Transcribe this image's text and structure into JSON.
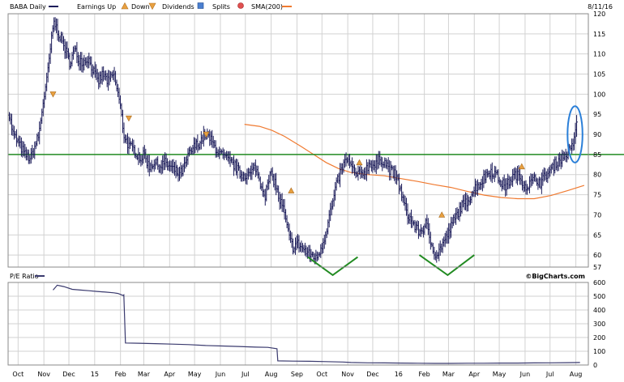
{
  "header": {
    "ticker_label": "BABA Daily",
    "legend": [
      {
        "label": "Earnings Up",
        "icon": "triangle-up-icon",
        "color": "#e8a040"
      },
      {
        "label": "Down",
        "icon": "triangle-down-icon",
        "color": "#e8a040"
      },
      {
        "label": "Dividends",
        "icon": "dividend-square-icon",
        "color": "#4a7fd0"
      },
      {
        "label": "Splits",
        "icon": "split-circle-icon",
        "color": "#e05050"
      },
      {
        "label": "SMA(200)",
        "icon": "sma-line-icon",
        "color": "#f07a30"
      }
    ],
    "date": "8/11/16"
  },
  "lower_panel_label": "P/E Ratio",
  "watermark": "©BigCharts.com",
  "colors": {
    "price": "#1c1c5a",
    "sma": "#f07a30",
    "resistance": "#228b22",
    "annotation_v": "#228b22",
    "annotation_ellipse": "#2a7fd8",
    "pe": "#3a3a6e",
    "marker": "#e8a040"
  },
  "chart_data": [
    {
      "type": "line",
      "panel": "price",
      "x_ticks": [
        {
          "label": "Oct",
          "day": 0
        },
        {
          "label": "Nov",
          "day": 31
        },
        {
          "label": "Dec",
          "day": 61
        },
        {
          "label": "15",
          "day": 92
        },
        {
          "label": "Feb",
          "day": 123
        },
        {
          "label": "Mar",
          "day": 151
        },
        {
          "label": "Apr",
          "day": 182
        },
        {
          "label": "May",
          "day": 212
        },
        {
          "label": "Jun",
          "day": 243
        },
        {
          "label": "Jul",
          "day": 273
        },
        {
          "label": "Aug",
          "day": 304
        },
        {
          "label": "Sep",
          "day": 335
        },
        {
          "label": "Oct",
          "day": 365
        },
        {
          "label": "Nov",
          "day": 396
        },
        {
          "label": "Dec",
          "day": 426
        },
        {
          "label": "16",
          "day": 457
        },
        {
          "label": "Feb",
          "day": 488
        },
        {
          "label": "Mar",
          "day": 517
        },
        {
          "label": "Apr",
          "day": 548
        },
        {
          "label": "May",
          "day": 578
        },
        {
          "label": "Jun",
          "day": 609
        },
        {
          "label": "Jul",
          "day": 639
        },
        {
          "label": "Aug",
          "day": 670
        }
      ],
      "x_range": [
        -12,
        685
      ],
      "y_ticks": [
        57,
        60,
        65,
        70,
        75,
        80,
        85,
        90,
        95,
        100,
        105,
        110,
        115,
        120
      ],
      "y_range": [
        57,
        120
      ],
      "grid": true,
      "series": [
        {
          "name": "BABA Daily",
          "style": "price-bars",
          "points": [
            [
              -12,
              96
            ],
            [
              -6,
              90
            ],
            [
              0,
              88
            ],
            [
              8,
              85
            ],
            [
              15,
              84
            ],
            [
              25,
              90
            ],
            [
              30,
              98
            ],
            [
              35,
              104
            ],
            [
              38,
              110
            ],
            [
              43,
              118
            ],
            [
              47,
              116
            ],
            [
              55,
              112
            ],
            [
              62,
              108
            ],
            [
              68,
              111
            ],
            [
              72,
              109
            ],
            [
              78,
              108
            ],
            [
              84,
              109
            ],
            [
              90,
              106
            ],
            [
              96,
              103
            ],
            [
              102,
              105
            ],
            [
              108,
              103
            ],
            [
              115,
              105
            ],
            [
              122,
              98
            ],
            [
              127,
              90
            ],
            [
              133,
              87
            ],
            [
              140,
              86
            ],
            [
              147,
              84
            ],
            [
              152,
              85
            ],
            [
              157,
              82
            ],
            [
              163,
              83
            ],
            [
              170,
              82
            ],
            [
              176,
              83
            ],
            [
              182,
              82
            ],
            [
              188,
              81
            ],
            [
              194,
              80
            ],
            [
              200,
              82
            ],
            [
              205,
              85
            ],
            [
              212,
              87
            ],
            [
              218,
              88
            ],
            [
              224,
              90
            ],
            [
              230,
              89
            ],
            [
              236,
              87
            ],
            [
              243,
              85
            ],
            [
              249,
              84
            ],
            [
              255,
              83
            ],
            [
              261,
              82
            ],
            [
              267,
              80
            ],
            [
              273,
              80
            ],
            [
              279,
              80
            ],
            [
              285,
              82
            ],
            [
              291,
              78
            ],
            [
              297,
              75
            ],
            [
              303,
              80
            ],
            [
              309,
              78
            ],
            [
              313,
              74
            ],
            [
              318,
              72
            ],
            [
              322,
              68
            ],
            [
              326,
              64
            ],
            [
              330,
              62
            ],
            [
              335,
              63
            ],
            [
              340,
              62
            ],
            [
              345,
              61
            ],
            [
              350,
              60
            ],
            [
              354,
              60
            ],
            [
              358,
              59
            ],
            [
              362,
              61
            ],
            [
              366,
              63
            ],
            [
              370,
              66
            ],
            [
              374,
              70
            ],
            [
              378,
              73
            ],
            [
              382,
              77
            ],
            [
              386,
              80
            ],
            [
              390,
              82
            ],
            [
              395,
              84
            ],
            [
              400,
              82
            ],
            [
              405,
              80
            ],
            [
              411,
              80
            ],
            [
              417,
              81
            ],
            [
              423,
              83
            ],
            [
              429,
              82
            ],
            [
              435,
              84
            ],
            [
              441,
              83
            ],
            [
              447,
              81
            ],
            [
              452,
              80
            ],
            [
              457,
              78
            ],
            [
              463,
              73
            ],
            [
              468,
              70
            ],
            [
              474,
              68
            ],
            [
              480,
              66
            ],
            [
              485,
              66
            ],
            [
              490,
              68
            ],
            [
              494,
              64
            ],
            [
              498,
              62
            ],
            [
              502,
              60
            ],
            [
              506,
              61
            ],
            [
              510,
              63
            ],
            [
              514,
              64
            ],
            [
              518,
              66
            ],
            [
              522,
              68
            ],
            [
              527,
              70
            ],
            [
              532,
              72
            ],
            [
              538,
              73
            ],
            [
              544,
              75
            ],
            [
              550,
              77
            ],
            [
              556,
              78
            ],
            [
              562,
              80
            ],
            [
              568,
              81
            ],
            [
              574,
              80
            ],
            [
              580,
              78
            ],
            [
              586,
              77
            ],
            [
              592,
              79
            ],
            [
              598,
              80
            ],
            [
              604,
              79
            ],
            [
              610,
              77
            ],
            [
              616,
              78
            ],
            [
              622,
              79
            ],
            [
              628,
              78
            ],
            [
              634,
              80
            ],
            [
              640,
              81
            ],
            [
              646,
              83
            ],
            [
              652,
              84
            ],
            [
              658,
              85
            ],
            [
              663,
              86
            ],
            [
              666,
              87
            ],
            [
              669,
              91
            ],
            [
              672,
              93
            ]
          ]
        },
        {
          "name": "SMA(200)",
          "style": "line",
          "points": [
            [
              272,
              92.5
            ],
            [
              290,
              92
            ],
            [
              305,
              91
            ],
            [
              320,
              89.5
            ],
            [
              340,
              87
            ],
            [
              355,
              85
            ],
            [
              370,
              83
            ],
            [
              385,
              81.5
            ],
            [
              400,
              80.5
            ],
            [
              420,
              80
            ],
            [
              440,
              79.7
            ],
            [
              460,
              79
            ],
            [
              480,
              78.3
            ],
            [
              500,
              77.5
            ],
            [
              520,
              76.8
            ],
            [
              540,
              75.8
            ],
            [
              560,
              74.9
            ],
            [
              580,
              74.3
            ],
            [
              600,
              74
            ],
            [
              620,
              74
            ],
            [
              640,
              74.8
            ],
            [
              660,
              76
            ],
            [
              680,
              77.3
            ]
          ]
        }
      ],
      "reference_lines": [
        {
          "y": 85
        }
      ],
      "markers": [
        {
          "type": "earnings-down",
          "x": 42,
          "y": 100
        },
        {
          "type": "earnings-down",
          "x": 133,
          "y": 94
        },
        {
          "type": "earnings-down",
          "x": 226,
          "y": 90
        },
        {
          "type": "earnings-up",
          "x": 328,
          "y": 76
        },
        {
          "type": "earnings-up",
          "x": 410,
          "y": 83
        },
        {
          "type": "earnings-up",
          "x": 509,
          "y": 70
        },
        {
          "type": "earnings-up",
          "x": 605,
          "y": 82
        }
      ],
      "annotations": [
        {
          "type": "v",
          "points": [
            [
              348,
              59.5
            ],
            [
              378,
              55
            ],
            [
              408,
              59.5
            ]
          ]
        },
        {
          "type": "v",
          "points": [
            [
              482,
              60
            ],
            [
              516,
              55
            ],
            [
              548,
              60
            ]
          ]
        },
        {
          "type": "ellipse",
          "cx": 669,
          "cy": 90,
          "rx": 9,
          "ry": 7
        }
      ]
    },
    {
      "type": "line",
      "panel": "pe",
      "title": "P/E Ratio",
      "x_range": [
        -12,
        685
      ],
      "y_ticks": [
        0,
        100,
        200,
        300,
        400,
        500,
        600
      ],
      "y_range": [
        0,
        600
      ],
      "grid": true,
      "series": [
        {
          "name": "P/E Ratio",
          "points": [
            [
              42,
              545
            ],
            [
              47,
              580
            ],
            [
              55,
              570
            ],
            [
              65,
              550
            ],
            [
              75,
              545
            ],
            [
              85,
              540
            ],
            [
              95,
              535
            ],
            [
              105,
              530
            ],
            [
              115,
              525
            ],
            [
              120,
              520
            ],
            [
              126,
              505
            ],
            [
              127,
              510
            ],
            [
              129,
              160
            ],
            [
              145,
              158
            ],
            [
              165,
              155
            ],
            [
              185,
              152
            ],
            [
              205,
              148
            ],
            [
              225,
              142
            ],
            [
              245,
              138
            ],
            [
              265,
              135
            ],
            [
              285,
              130
            ],
            [
              300,
              128
            ],
            [
              311,
              118
            ],
            [
              312,
              30
            ],
            [
              330,
              28
            ],
            [
              350,
              27
            ],
            [
              370,
              25
            ],
            [
              390,
              22
            ],
            [
              400,
              18
            ],
            [
              420,
              16
            ],
            [
              440,
              15
            ],
            [
              460,
              14
            ],
            [
              480,
              13
            ],
            [
              500,
              12
            ],
            [
              520,
              12
            ],
            [
              540,
              13
            ],
            [
              560,
              13
            ],
            [
              580,
              14
            ],
            [
              600,
              14
            ],
            [
              620,
              15
            ],
            [
              640,
              16
            ],
            [
              660,
              17
            ],
            [
              675,
              18
            ]
          ]
        }
      ]
    }
  ]
}
